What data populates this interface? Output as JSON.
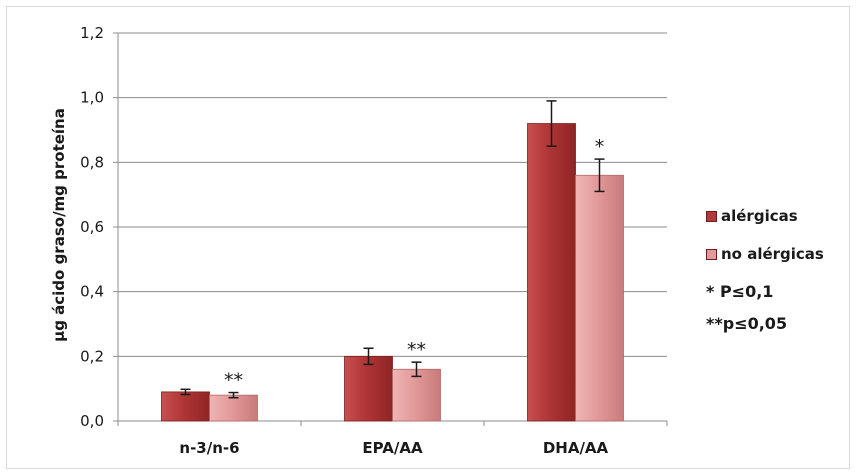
{
  "chart_data": {
    "type": "bar",
    "categories": [
      "n-3/n-6",
      "EPA/AA",
      "DHA/AA"
    ],
    "series": [
      {
        "name": "alérgicas",
        "values": [
          0.09,
          0.2,
          0.92
        ],
        "errors": [
          0.008,
          0.025,
          0.07
        ],
        "color": "#b33a3a"
      },
      {
        "name": "no alérgicas",
        "values": [
          0.08,
          0.16,
          0.76
        ],
        "errors": [
          0.008,
          0.022,
          0.05
        ],
        "color": "#e39a9a"
      }
    ],
    "significance": [
      "**",
      "**",
      "*"
    ],
    "ylabel": "µg ácido graso/mg proteína",
    "xlabel": "",
    "ylim": [
      0,
      1.2
    ],
    "yticks": [
      "0,0",
      "0,2",
      "0,4",
      "0,6",
      "0,8",
      "1,0",
      "1,2"
    ],
    "grid": true,
    "legend_position": "right"
  },
  "notes": [
    "* P≤0,1",
    "**p≤0,05"
  ]
}
